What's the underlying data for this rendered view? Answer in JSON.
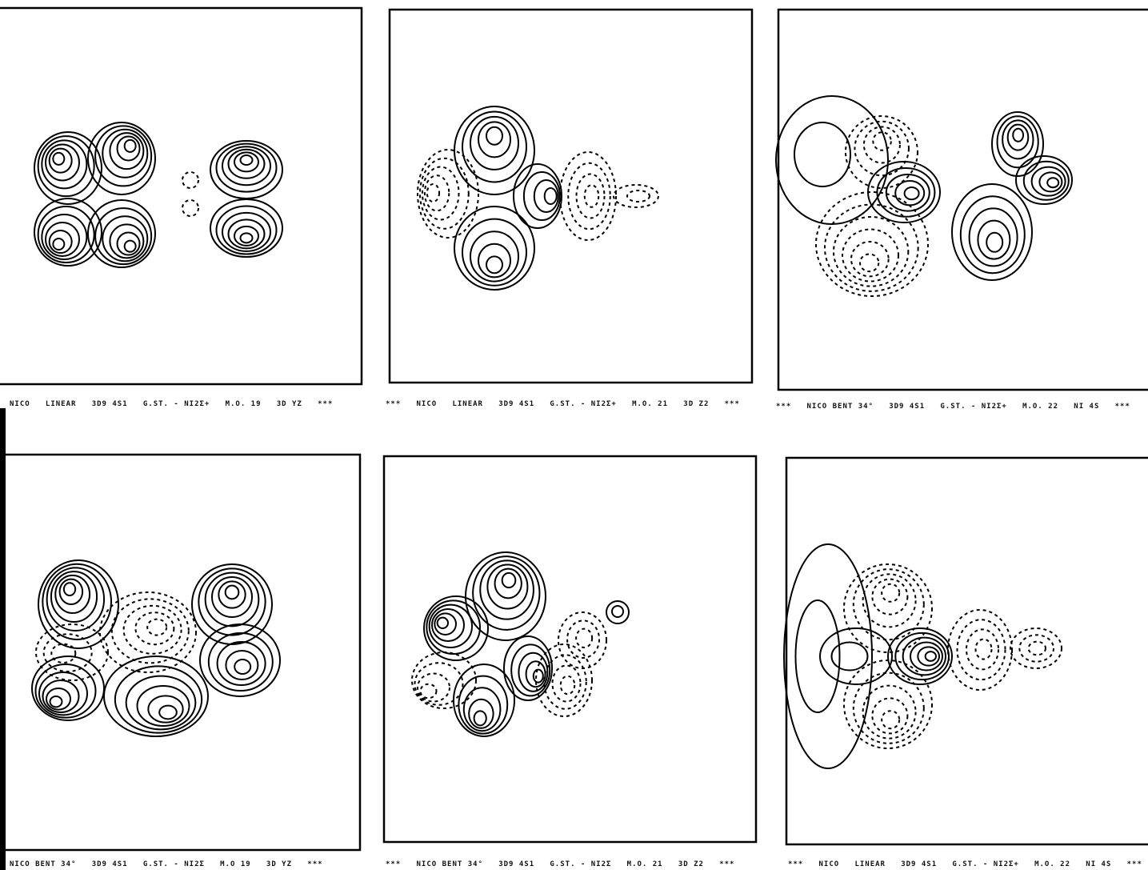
{
  "panels": [
    {
      "caption": "NICO   LINEAR   3D9 4S1   G.ST. - NI2Σ+   M.O. 19   3D YZ   ***"
    },
    {
      "caption": "***   NICO   LINEAR   3D9 4S1   G.ST. - NI2Σ+   M.O. 21   3D Z2   ***"
    },
    {
      "caption": "***   NICO BENT 34°   3D9 4S1   G.ST. - NI2Σ+   M.O. 22   NI 4S   ***"
    },
    {
      "caption": "NICO BENT 34°   3D9 4S1   G.ST. - NI2Σ   M.O 19   3D YZ   ***"
    },
    {
      "caption": "***   NICO BENT 34°   3D9 4S1   G.ST. - NI2Σ   M.O. 21   3D Z2   ***"
    },
    {
      "caption": "***   NICO   LINEAR   3D9 4S1   G.ST. - NI2Σ+   M.O. 22   NI 4S   ***"
    }
  ]
}
